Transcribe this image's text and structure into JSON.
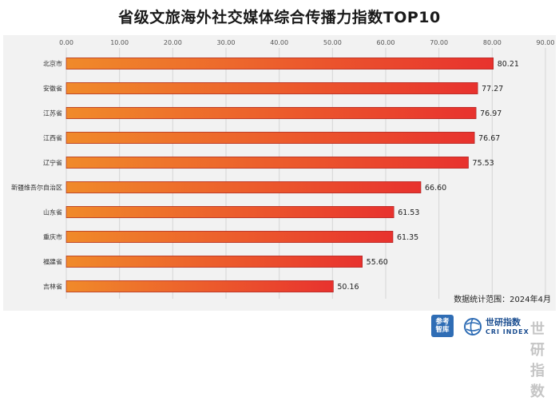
{
  "chart_data": {
    "type": "bar",
    "orientation": "horizontal",
    "title": "省级文旅海外社交媒体综合传播力指数TOP10",
    "categories": [
      "北京市",
      "安徽省",
      "江苏省",
      "江西省",
      "辽宁省",
      "新疆维吾尔自治区",
      "山东省",
      "重庆市",
      "福建省",
      "吉林省"
    ],
    "values": [
      80.21,
      77.27,
      76.97,
      76.67,
      75.53,
      66.6,
      61.53,
      61.35,
      55.6,
      50.16
    ],
    "value_labels": [
      "80.21",
      "77.27",
      "76.97",
      "76.67",
      "75.53",
      "66.60",
      "61.53",
      "61.35",
      "55.60",
      "50.16"
    ],
    "xlim": [
      0,
      90
    ],
    "x_ticks": [
      "0.00",
      "10.00",
      "20.00",
      "30.00",
      "40.00",
      "50.00",
      "60.00",
      "70.00",
      "80.00",
      "90.00"
    ],
    "x_axis_position": "top",
    "grid": true,
    "xlabel": "",
    "ylabel": "",
    "bar_gradient": [
      "#f08a2a",
      "#e8322e"
    ],
    "annotation": "数据统计范围：2024年4月"
  },
  "footer": {
    "logo_cankao_line1": "参考",
    "logo_cankao_line2": "智库",
    "logo_cri_name": "世研指数",
    "logo_cri_sub": "CRI INDEX",
    "watermark": "世研指数"
  }
}
